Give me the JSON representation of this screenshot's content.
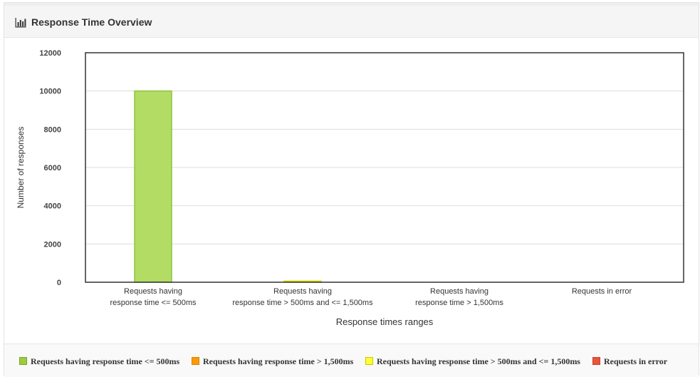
{
  "header": {
    "title": "Response Time Overview",
    "icon": "bar-chart-icon"
  },
  "chart_data": {
    "type": "bar",
    "title": "",
    "xlabel": "Response times ranges",
    "ylabel": "Number of responses",
    "ylim": [
      0,
      12000
    ],
    "yticks": [
      0,
      2000,
      4000,
      6000,
      8000,
      10000,
      12000
    ],
    "grid": true,
    "legend_position": "bottom",
    "categories": [
      [
        "Requests having",
        "response time <= 500ms"
      ],
      [
        "Requests having",
        "response time > 500ms and <= 1,500ms"
      ],
      [
        "Requests having",
        "response time > 1,500ms"
      ],
      [
        "Requests in error"
      ]
    ],
    "values": [
      10000,
      60,
      0,
      0
    ],
    "bar_colors": [
      "#b3dc64",
      "#ffff33",
      "#ff9900",
      "#e8553a"
    ],
    "bar_borders": [
      "#8cc63f",
      "#d6d600",
      "#d98200",
      "#c9402a"
    ]
  },
  "legend": {
    "items": [
      {
        "label": "Requests having response time <= 500ms",
        "color": "#9ccc3c",
        "border": "#7aa32a"
      },
      {
        "label": "Requests having response time > 1,500ms",
        "color": "#ff9900",
        "border": "#d98200"
      },
      {
        "label": "Requests having response time > 500ms and <= 1,500ms",
        "color": "#ffff33",
        "border": "#c8c800"
      },
      {
        "label": "Requests in error",
        "color": "#e8553a",
        "border": "#c9402a"
      }
    ]
  }
}
